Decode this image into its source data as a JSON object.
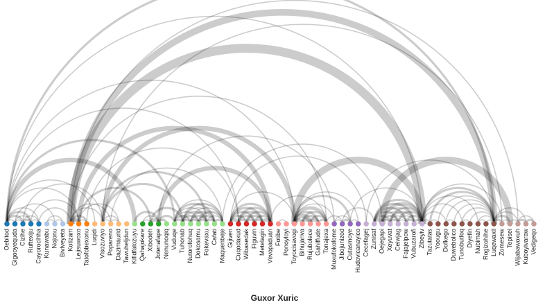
{
  "title": "Guxor Xuric",
  "nodes": [
    {
      "name": "Oebitod",
      "color": "#1f77b4"
    },
    {
      "name": "Gigooyequda",
      "color": "#1f77b4"
    },
    {
      "name": "Cizihe",
      "color": "#1f77b4"
    },
    {
      "name": "Ruftexiju",
      "color": "#1f77b4"
    },
    {
      "name": "Cayorocihha",
      "color": "#1f77b4"
    },
    {
      "name": "Kunawabu",
      "color": "#aec7e8"
    },
    {
      "name": "Nojonu",
      "color": "#aec7e8"
    },
    {
      "name": "Bivlveyeta",
      "color": "#aec7e8"
    },
    {
      "name": "Kotizam",
      "color": "#ff7f0e"
    },
    {
      "name": "Lejisuwoxo",
      "color": "#ff7f0e"
    },
    {
      "name": "Tatofobexonu",
      "color": "#ff7f0e"
    },
    {
      "name": "Luqidi",
      "color": "#ffbb78"
    },
    {
      "name": "Visozuvlyo",
      "color": "#ffbb78"
    },
    {
      "name": "Popareno",
      "color": "#ffbb78"
    },
    {
      "name": "Dazimaurid",
      "color": "#ffbb78"
    },
    {
      "name": "Tawuheljdun",
      "color": "#ffbb78"
    },
    {
      "name": "Kifidfalozuyu",
      "color": "#98df8a"
    },
    {
      "name": "Qahajokare",
      "color": "#2ca02c"
    },
    {
      "name": "Xibodeh",
      "color": "#2ca02c"
    },
    {
      "name": "Jotenafape",
      "color": "#2ca02c"
    },
    {
      "name": "Nenunoqiq",
      "color": "#98df8a"
    },
    {
      "name": "Vuduqe",
      "color": "#98df8a"
    },
    {
      "name": "Tuhonab",
      "color": "#98df8a"
    },
    {
      "name": "Nutorofohuq",
      "color": "#98df8a"
    },
    {
      "name": "Dokosamu",
      "color": "#98df8a"
    },
    {
      "name": "Fokevaxu",
      "color": "#98df8a"
    },
    {
      "name": "Cafati",
      "color": "#98df8a"
    },
    {
      "name": "Maquenbeje",
      "color": "#98df8a"
    },
    {
      "name": "Gijiven",
      "color": "#d62728"
    },
    {
      "name": "Cuqodaxud",
      "color": "#d62728"
    },
    {
      "name": "Wibasedak",
      "color": "#d62728"
    },
    {
      "name": "Figuvin",
      "color": "#d62728"
    },
    {
      "name": "Metelagin",
      "color": "#d62728"
    },
    {
      "name": "Vevopaduan",
      "color": "#d62728"
    },
    {
      "name": "Fotibe",
      "color": "#ff9896"
    },
    {
      "name": "Ponoyloyi",
      "color": "#ff9896"
    },
    {
      "name": "Toyocisavogi",
      "color": "#ff9896"
    },
    {
      "name": "Bihujariva",
      "color": "#ff9896"
    },
    {
      "name": "Rujubolece",
      "color": "#ff9896"
    },
    {
      "name": "Gahiffude",
      "color": "#ff9896"
    },
    {
      "name": "Tonajexa",
      "color": "#ff9896"
    },
    {
      "name": "Muxufokofome",
      "color": "#9467bd"
    },
    {
      "name": "Jibojunizod",
      "color": "#9467bd"
    },
    {
      "name": "Cutasmoye",
      "color": "#9467bd"
    },
    {
      "name": "Hudovicanayico",
      "color": "#9467bd"
    },
    {
      "name": "Cecefagej",
      "color": "#c5b0d5"
    },
    {
      "name": "Zunisaf",
      "color": "#c5b0d5"
    },
    {
      "name": "Oejegapi",
      "color": "#c5b0d5"
    },
    {
      "name": "Xeyuvat",
      "color": "#c5b0d5"
    },
    {
      "name": "Ceiwjag",
      "color": "#c5b0d5"
    },
    {
      "name": "Fajajelpow",
      "color": "#c5b0d5"
    },
    {
      "name": "Vubuzarofi",
      "color": "#c5b0d5"
    },
    {
      "name": "Zibeyiv",
      "color": "#c5b0d5"
    },
    {
      "name": "Tazutatas",
      "color": "#8c564b"
    },
    {
      "name": "Yoougu",
      "color": "#8c564b"
    },
    {
      "name": "Dofkego",
      "color": "#8c564b"
    },
    {
      "name": "Duwebolico",
      "color": "#8c564b"
    },
    {
      "name": "Tunobutfoq",
      "color": "#8c564b"
    },
    {
      "name": "Diyefin",
      "color": "#8c564b"
    },
    {
      "name": "Nubimah",
      "color": "#8c564b"
    },
    {
      "name": "Rogizohihe",
      "color": "#8c564b"
    },
    {
      "name": "Luqewaxil",
      "color": "#8c564b"
    },
    {
      "name": "Zomesew",
      "color": "#c49c94"
    },
    {
      "name": "Tepisel",
      "color": "#c49c94"
    },
    {
      "name": "Wijabawoxuh",
      "color": "#c49c94"
    },
    {
      "name": "Kuboyivaraw",
      "color": "#c49c94"
    },
    {
      "name": "Vedigeqo",
      "color": "#c49c94"
    }
  ],
  "links": [
    [
      0,
      1,
      1
    ],
    [
      0,
      2,
      2
    ],
    [
      0,
      3,
      2
    ],
    [
      0,
      4,
      1
    ],
    [
      1,
      2,
      1
    ],
    [
      1,
      3,
      1
    ],
    [
      2,
      3,
      2
    ],
    [
      3,
      4,
      1
    ],
    [
      2,
      4,
      1
    ],
    [
      0,
      9,
      1
    ],
    [
      0,
      11,
      1
    ],
    [
      0,
      21,
      2
    ],
    [
      0,
      29,
      1
    ],
    [
      0,
      36,
      1
    ],
    [
      0,
      52,
      1
    ],
    [
      0,
      61,
      2
    ],
    [
      1,
      6,
      1
    ],
    [
      2,
      12,
      1
    ],
    [
      3,
      9,
      1
    ],
    [
      4,
      8,
      1
    ],
    [
      5,
      6,
      1
    ],
    [
      6,
      7,
      1
    ],
    [
      5,
      7,
      1
    ],
    [
      8,
      9,
      3
    ],
    [
      8,
      10,
      2
    ],
    [
      9,
      10,
      1
    ],
    [
      8,
      12,
      1
    ],
    [
      8,
      13,
      1
    ],
    [
      9,
      14,
      1
    ],
    [
      8,
      52,
      8
    ],
    [
      8,
      61,
      6
    ],
    [
      9,
      33,
      4
    ],
    [
      10,
      29,
      1
    ],
    [
      8,
      40,
      1
    ],
    [
      8,
      64,
      1
    ],
    [
      12,
      13,
      1
    ],
    [
      12,
      14,
      1
    ],
    [
      13,
      14,
      1
    ],
    [
      12,
      22,
      2
    ],
    [
      12,
      25,
      2
    ],
    [
      12,
      36,
      4
    ],
    [
      13,
      27,
      1
    ],
    [
      12,
      62,
      1
    ],
    [
      17,
      18,
      1
    ],
    [
      18,
      19,
      3
    ],
    [
      17,
      19,
      1
    ],
    [
      19,
      20,
      2
    ],
    [
      19,
      33,
      4
    ],
    [
      19,
      41,
      1
    ],
    [
      19,
      21,
      2
    ],
    [
      18,
      22,
      2
    ],
    [
      0,
      16,
      4
    ],
    [
      9,
      18,
      2
    ],
    [
      16,
      19,
      2
    ],
    [
      21,
      22,
      2
    ],
    [
      21,
      23,
      2
    ],
    [
      21,
      24,
      1
    ],
    [
      21,
      25,
      1
    ],
    [
      21,
      26,
      2
    ],
    [
      21,
      27,
      1
    ],
    [
      22,
      23,
      2
    ],
    [
      22,
      24,
      2
    ],
    [
      22,
      25,
      2
    ],
    [
      22,
      26,
      1
    ],
    [
      22,
      27,
      2
    ],
    [
      23,
      24,
      2
    ],
    [
      23,
      25,
      2
    ],
    [
      23,
      26,
      2
    ],
    [
      23,
      27,
      1
    ],
    [
      24,
      25,
      2
    ],
    [
      24,
      26,
      2
    ],
    [
      24,
      27,
      2
    ],
    [
      25,
      26,
      2
    ],
    [
      25,
      27,
      1
    ],
    [
      26,
      27,
      2
    ],
    [
      28,
      29,
      3
    ],
    [
      28,
      30,
      2
    ],
    [
      28,
      31,
      2
    ],
    [
      28,
      32,
      2
    ],
    [
      28,
      33,
      2
    ],
    [
      29,
      30,
      2
    ],
    [
      29,
      31,
      2
    ],
    [
      29,
      32,
      2
    ],
    [
      29,
      33,
      2
    ],
    [
      30,
      31,
      2
    ],
    [
      30,
      32,
      2
    ],
    [
      30,
      33,
      2
    ],
    [
      31,
      32,
      2
    ],
    [
      31,
      33,
      2
    ],
    [
      32,
      33,
      3
    ],
    [
      28,
      36,
      1
    ],
    [
      33,
      40,
      1
    ],
    [
      28,
      45,
      1
    ],
    [
      36,
      37,
      3
    ],
    [
      36,
      38,
      4
    ],
    [
      36,
      39,
      2
    ],
    [
      36,
      40,
      3
    ],
    [
      37,
      38,
      3
    ],
    [
      37,
      39,
      2
    ],
    [
      37,
      40,
      2
    ],
    [
      38,
      39,
      3
    ],
    [
      38,
      40,
      2
    ],
    [
      39,
      40,
      2
    ],
    [
      36,
      52,
      6
    ],
    [
      36,
      41,
      1
    ],
    [
      36,
      43,
      2
    ],
    [
      40,
      42,
      1
    ],
    [
      36,
      44,
      1
    ],
    [
      34,
      35,
      1
    ],
    [
      41,
      42,
      1
    ],
    [
      42,
      43,
      2
    ],
    [
      41,
      43,
      1
    ],
    [
      43,
      44,
      1
    ],
    [
      43,
      52,
      1
    ],
    [
      46,
      47,
      3
    ],
    [
      46,
      48,
      2
    ],
    [
      46,
      49,
      2
    ],
    [
      46,
      50,
      2
    ],
    [
      46,
      51,
      2
    ],
    [
      46,
      52,
      2
    ],
    [
      47,
      48,
      2
    ],
    [
      47,
      49,
      2
    ],
    [
      47,
      50,
      1
    ],
    [
      47,
      51,
      1
    ],
    [
      47,
      52,
      3
    ],
    [
      48,
      49,
      2
    ],
    [
      48,
      50,
      1
    ],
    [
      48,
      51,
      2
    ],
    [
      48,
      52,
      2
    ],
    [
      49,
      50,
      1
    ],
    [
      49,
      51,
      1
    ],
    [
      49,
      52,
      2
    ],
    [
      50,
      51,
      2
    ],
    [
      50,
      52,
      2
    ],
    [
      51,
      52,
      2
    ],
    [
      52,
      61,
      2
    ],
    [
      52,
      53,
      1
    ],
    [
      52,
      55,
      1
    ],
    [
      52,
      57,
      1
    ],
    [
      52,
      59,
      1
    ],
    [
      52,
      62,
      1
    ],
    [
      53,
      61,
      2
    ],
    [
      54,
      61,
      1
    ],
    [
      55,
      61,
      1
    ],
    [
      56,
      61,
      1
    ],
    [
      57,
      61,
      1
    ],
    [
      58,
      61,
      1
    ],
    [
      59,
      61,
      1
    ],
    [
      60,
      61,
      1
    ],
    [
      53,
      54,
      1
    ],
    [
      55,
      56,
      1
    ],
    [
      57,
      58,
      1
    ],
    [
      59,
      60,
      1
    ],
    [
      61,
      62,
      2
    ],
    [
      61,
      63,
      2
    ],
    [
      61,
      64,
      1
    ],
    [
      61,
      65,
      1
    ],
    [
      62,
      63,
      1
    ],
    [
      63,
      64,
      1
    ],
    [
      64,
      65,
      2
    ],
    [
      65,
      66,
      2
    ],
    [
      64,
      66,
      1
    ],
    [
      47,
      63,
      6
    ],
    [
      45,
      61,
      1
    ],
    [
      27,
      47,
      1
    ],
    [
      42,
      46,
      1
    ]
  ]
}
